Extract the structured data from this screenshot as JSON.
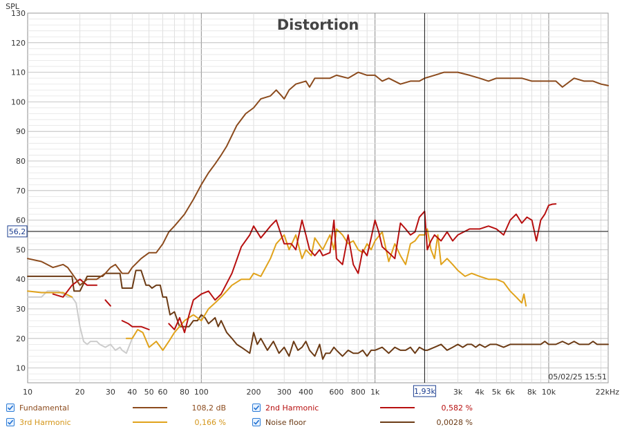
{
  "chart_data": {
    "type": "line",
    "title": "Distortion",
    "ylabel": "SPL",
    "xlabel": "",
    "x_scale": "log",
    "xlim": [
      10,
      22000
    ],
    "ylim": [
      5,
      130
    ],
    "grid": true,
    "cursor": {
      "x": 1930,
      "y": 56.2,
      "x_label": "1,93k",
      "y_label": "56,2"
    },
    "timestamp": "05/02/25 15:51",
    "y_ticks": [
      {
        "v": 10,
        "label": "10"
      },
      {
        "v": 20,
        "label": "20"
      },
      {
        "v": 30,
        "label": "30"
      },
      {
        "v": 40,
        "label": "40"
      },
      {
        "v": 50,
        "label": "50"
      },
      {
        "v": 60,
        "label": "60"
      },
      {
        "v": 70,
        "label": "70"
      },
      {
        "v": 80,
        "label": "80"
      },
      {
        "v": 90,
        "label": "90"
      },
      {
        "v": 100,
        "label": "100"
      },
      {
        "v": 110,
        "label": "110"
      },
      {
        "v": 120,
        "label": "120"
      },
      {
        "v": 130,
        "label": "130"
      }
    ],
    "x_ticks": [
      {
        "v": 10,
        "label": "10"
      },
      {
        "v": 20,
        "label": "20"
      },
      {
        "v": 30,
        "label": "30"
      },
      {
        "v": 40,
        "label": "40"
      },
      {
        "v": 50,
        "label": "50"
      },
      {
        "v": 60,
        "label": "60"
      },
      {
        "v": 80,
        "label": "80"
      },
      {
        "v": 100,
        "label": "100"
      },
      {
        "v": 200,
        "label": "200"
      },
      {
        "v": 300,
        "label": "300"
      },
      {
        "v": 400,
        "label": "400"
      },
      {
        "v": 600,
        "label": "600"
      },
      {
        "v": 800,
        "label": "800"
      },
      {
        "v": 1000,
        "label": "1k"
      },
      {
        "v": 3000,
        "label": "3k"
      },
      {
        "v": 4000,
        "label": "4k"
      },
      {
        "v": 5000,
        "label": "5k"
      },
      {
        "v": 6000,
        "label": "6k"
      },
      {
        "v": 8000,
        "label": "8k"
      },
      {
        "v": 10000,
        "label": "10k"
      },
      {
        "v": 22000,
        "label": "22kHz"
      }
    ],
    "series": [
      {
        "name": "Fundamental",
        "color": "#8b4a1c",
        "legend_value": "108,2 dB",
        "x": [
          10,
          12,
          14,
          16,
          17,
          19,
          20,
          22,
          25,
          28,
          30,
          32,
          35,
          38,
          40,
          45,
          50,
          55,
          60,
          65,
          70,
          80,
          90,
          100,
          110,
          120,
          130,
          140,
          160,
          180,
          200,
          220,
          250,
          270,
          290,
          300,
          320,
          350,
          400,
          420,
          450,
          500,
          550,
          600,
          700,
          800,
          900,
          1000,
          1100,
          1200,
          1400,
          1600,
          1800,
          1930,
          2200,
          2500,
          3000,
          3500,
          4000,
          4500,
          5000,
          5500,
          6000,
          7000,
          8000,
          9000,
          10000,
          11000,
          12000,
          14000,
          16000,
          18000,
          20000,
          22000
        ],
        "y": [
          47,
          46,
          44,
          45,
          44,
          40,
          38,
          40,
          40,
          42,
          44,
          45,
          42,
          42,
          44,
          47,
          49,
          49,
          52,
          56,
          58,
          62,
          67,
          72,
          76,
          79,
          82,
          85,
          92,
          96,
          98,
          101,
          102,
          104,
          102,
          101,
          104,
          106,
          107,
          105,
          108,
          108,
          108,
          109,
          108,
          110,
          109,
          109,
          107,
          108,
          106,
          107,
          107,
          108,
          109,
          110,
          110,
          109,
          108,
          107,
          108,
          108,
          108,
          108,
          107,
          107,
          107,
          107,
          105,
          108,
          107,
          107,
          106,
          105.5
        ]
      },
      {
        "name": "2nd Harmonic",
        "color": "#b70f0f",
        "legend_value": "0,582 %",
        "segments": [
          {
            "x": [
              14,
              16,
              18,
              20,
              22,
              25
            ],
            "y": [
              35,
              34,
              38,
              40,
              38,
              38
            ]
          },
          {
            "x": [
              28,
              30
            ],
            "y": [
              33,
              31
            ]
          },
          {
            "x": [
              35,
              38,
              40,
              45,
              50
            ],
            "y": [
              26,
              25,
              24,
              24,
              23
            ]
          },
          {
            "x": [
              65,
              70,
              75,
              80,
              85,
              90,
              100,
              110,
              120,
              130,
              150,
              170,
              190,
              200,
              220,
              250,
              270,
              300,
              330,
              350,
              380,
              400,
              420,
              450,
              480,
              500,
              550,
              580,
              600,
              650,
              700,
              750,
              800,
              850,
              900,
              950,
              1000,
              1050,
              1100,
              1200,
              1300,
              1400,
              1500,
              1600,
              1700,
              1800,
              1930,
              2000,
              2100,
              2200,
              2400,
              2600,
              2800,
              3000,
              3500,
              4000,
              4500,
              5000,
              5500,
              6000,
              6500,
              7000,
              7500,
              8000,
              8500,
              9000,
              9500,
              10000,
              10500,
              11000
            ],
            "y": [
              25,
              23,
              27,
              22,
              28,
              33,
              35,
              36,
              33,
              35,
              42,
              51,
              55,
              58,
              54,
              58,
              60,
              52,
              52,
              50,
              60,
              55,
              50,
              48,
              50,
              48,
              49,
              60,
              47,
              45,
              55,
              45,
              42,
              50,
              48,
              54,
              60,
              56,
              51,
              49,
              47,
              59,
              57,
              55,
              56,
              61,
              63,
              50,
              53,
              55,
              53,
              56,
              53,
              55,
              57,
              57,
              58,
              57,
              55,
              60,
              62,
              59,
              61,
              60,
              53,
              60,
              62,
              65,
              65.4,
              65.5
            ]
          }
        ]
      },
      {
        "name": "3rd Harmonic",
        "color": "#e0a21a",
        "legend_value": "0,166 %",
        "segments": [
          {
            "x": [
              10,
              12,
              14,
              16,
              18
            ],
            "y": [
              36,
              35.5,
              35.5,
              35.5,
              34
            ]
          },
          {
            "x": [
              37,
              40,
              43,
              46,
              50,
              55,
              60,
              65,
              70,
              80,
              90,
              100,
              110,
              120,
              130,
              150,
              170,
              190,
              200,
              220,
              250,
              270,
              300,
              320,
              350,
              380,
              400,
              430,
              450,
              500,
              550,
              580,
              600,
              650,
              700,
              750,
              800,
              850,
              900,
              950,
              1000,
              1100,
              1200,
              1300,
              1400,
              1500,
              1600,
              1700,
              1800,
              1930,
              2000,
              2100,
              2200,
              2300,
              2400,
              2600,
              2800,
              3000,
              3300,
              3600,
              4000,
              4500,
              5000,
              5500,
              6000,
              6500,
              7000,
              7200,
              7400
            ],
            "y": [
              20,
              20,
              23,
              22,
              17,
              19,
              16,
              19,
              22,
              26,
              28,
              26,
              30,
              32,
              34,
              38,
              40,
              40,
              42,
              41,
              47,
              52,
              55,
              50,
              55,
              47,
              50,
              48,
              54,
              50,
              55,
              50,
              57,
              55,
              52,
              53,
              50,
              49,
              52,
              50,
              53,
              56,
              46,
              52,
              48,
              45,
              52,
              53,
              55,
              55,
              57,
              50,
              47,
              55,
              45,
              47,
              45,
              43,
              41,
              42,
              41,
              40,
              40,
              39,
              36,
              34,
              32,
              35,
              31
            ]
          }
        ]
      },
      {
        "name": "Noise floor",
        "color": "#6b3a14",
        "legend_value": "0,0028 %",
        "x": [
          10,
          12,
          14,
          16,
          18,
          18.5,
          20,
          22,
          25,
          27,
          28,
          30,
          32,
          34,
          35,
          36,
          40,
          42,
          45,
          48,
          50,
          52,
          55,
          58,
          60,
          63,
          66,
          70,
          75,
          80,
          85,
          90,
          95,
          100,
          105,
          110,
          115,
          120,
          125,
          130,
          140,
          150,
          160,
          170,
          180,
          190,
          200,
          210,
          220,
          240,
          260,
          280,
          300,
          320,
          340,
          360,
          380,
          400,
          420,
          450,
          480,
          500,
          520,
          550,
          580,
          600,
          650,
          700,
          750,
          800,
          850,
          900,
          950,
          1000,
          1100,
          1200,
          1300,
          1400,
          1500,
          1600,
          1700,
          1800,
          1930,
          2000,
          2200,
          2400,
          2600,
          2800,
          3000,
          3200,
          3400,
          3600,
          3800,
          4000,
          4300,
          4600,
          5000,
          5500,
          6000,
          6500,
          7000,
          7500,
          8000,
          8500,
          9000,
          9500,
          10000,
          11000,
          12000,
          13000,
          14000,
          15000,
          16000,
          17000,
          18000,
          19000,
          20000,
          21000,
          22000
        ],
        "y": [
          41,
          41,
          41,
          41,
          41,
          36,
          36,
          41,
          41,
          41,
          42,
          42,
          42,
          42,
          37,
          37,
          37,
          43,
          43,
          38,
          38,
          37,
          38,
          38,
          34,
          34,
          28,
          29,
          24,
          24,
          24,
          26,
          26,
          28,
          27,
          25,
          26,
          27,
          24,
          26,
          22,
          20,
          18,
          17,
          16,
          15,
          22,
          18,
          20,
          16,
          19,
          15,
          17,
          14,
          19,
          16,
          17,
          19,
          16,
          14,
          18,
          13,
          15,
          15,
          17,
          16,
          14,
          16,
          15,
          15,
          16,
          14,
          16,
          16,
          17,
          15,
          17,
          16,
          16,
          17,
          15,
          17,
          16,
          16,
          17,
          18,
          16,
          17,
          18,
          17,
          18,
          18,
          17,
          18,
          17,
          18,
          18,
          17,
          18,
          18,
          18,
          18,
          18,
          18,
          18,
          19,
          18,
          18,
          19,
          18,
          19,
          18,
          18,
          18,
          19,
          18,
          18,
          18,
          18
        ]
      },
      {
        "name": "",
        "color": "#cccccc",
        "x": [
          10,
          11,
          12,
          13,
          14,
          15,
          16,
          17,
          18,
          19,
          20,
          21,
          22,
          23,
          24,
          25,
          26,
          28,
          30,
          32,
          34,
          35,
          37,
          40
        ],
        "y": [
          34,
          34,
          34,
          36,
          36,
          36,
          35,
          34,
          34,
          32,
          24,
          19,
          18,
          19,
          19,
          19,
          18,
          17,
          18,
          16,
          17,
          16,
          15,
          20
        ]
      }
    ]
  },
  "legend": [
    {
      "label": "Fundamental",
      "value": "108,2 dB",
      "color": "#8b4a1c",
      "text_color": "#8b4a1c",
      "checked": true
    },
    {
      "label": "2nd Harmonic",
      "value": "0,582 %",
      "color": "#b70f0f",
      "text_color": "#b70f0f",
      "checked": true
    },
    {
      "label": "3rd Harmonic",
      "value": "0,166 %",
      "color": "#e0a21a",
      "text_color": "#d4961a",
      "checked": true
    },
    {
      "label": "Noise floor",
      "value": "0,0028 %",
      "color": "#6b3a14",
      "text_color": "#6b3a14",
      "checked": true
    }
  ]
}
